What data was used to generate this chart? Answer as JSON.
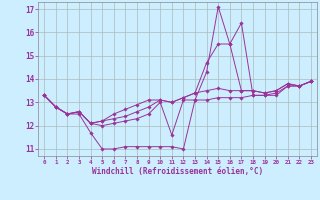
{
  "xlabel": "Windchill (Refroidissement éolien,°C)",
  "hours": [
    0,
    1,
    2,
    3,
    4,
    5,
    6,
    7,
    8,
    9,
    10,
    11,
    12,
    13,
    14,
    15,
    16,
    17,
    18,
    19,
    20,
    21,
    22,
    23
  ],
  "series": [
    [
      13.3,
      12.8,
      12.5,
      12.5,
      11.7,
      11.0,
      11.0,
      11.1,
      11.1,
      11.1,
      11.1,
      11.1,
      11.0,
      13.1,
      14.3,
      17.1,
      15.5,
      16.4,
      13.3,
      13.3,
      13.3,
      13.7,
      13.7,
      13.9
    ],
    [
      13.3,
      12.8,
      12.5,
      12.6,
      12.1,
      12.0,
      12.1,
      12.2,
      12.3,
      12.5,
      13.0,
      11.6,
      13.1,
      13.1,
      13.1,
      13.2,
      13.2,
      13.2,
      13.3,
      13.3,
      13.4,
      13.7,
      13.7,
      13.9
    ],
    [
      13.3,
      12.8,
      12.5,
      12.6,
      12.1,
      12.2,
      12.3,
      12.4,
      12.6,
      12.8,
      13.1,
      13.0,
      13.2,
      13.4,
      14.7,
      15.5,
      15.5,
      13.5,
      13.5,
      13.4,
      13.5,
      13.8,
      13.7,
      13.9
    ],
    [
      13.3,
      12.8,
      12.5,
      12.6,
      12.1,
      12.2,
      12.5,
      12.7,
      12.9,
      13.1,
      13.1,
      13.0,
      13.2,
      13.4,
      13.5,
      13.6,
      13.5,
      13.5,
      13.5,
      13.4,
      13.5,
      13.8,
      13.7,
      13.9
    ]
  ],
  "line_color": "#993399",
  "bg_color": "#cceeff",
  "grid_color": "#aabbbb",
  "ylim": [
    10.7,
    17.3
  ],
  "yticks": [
    11,
    12,
    13,
    14,
    15,
    16,
    17
  ],
  "xticks": [
    0,
    1,
    2,
    3,
    4,
    5,
    6,
    7,
    8,
    9,
    10,
    11,
    12,
    13,
    14,
    15,
    16,
    17,
    18,
    19,
    20,
    21,
    22,
    23
  ]
}
